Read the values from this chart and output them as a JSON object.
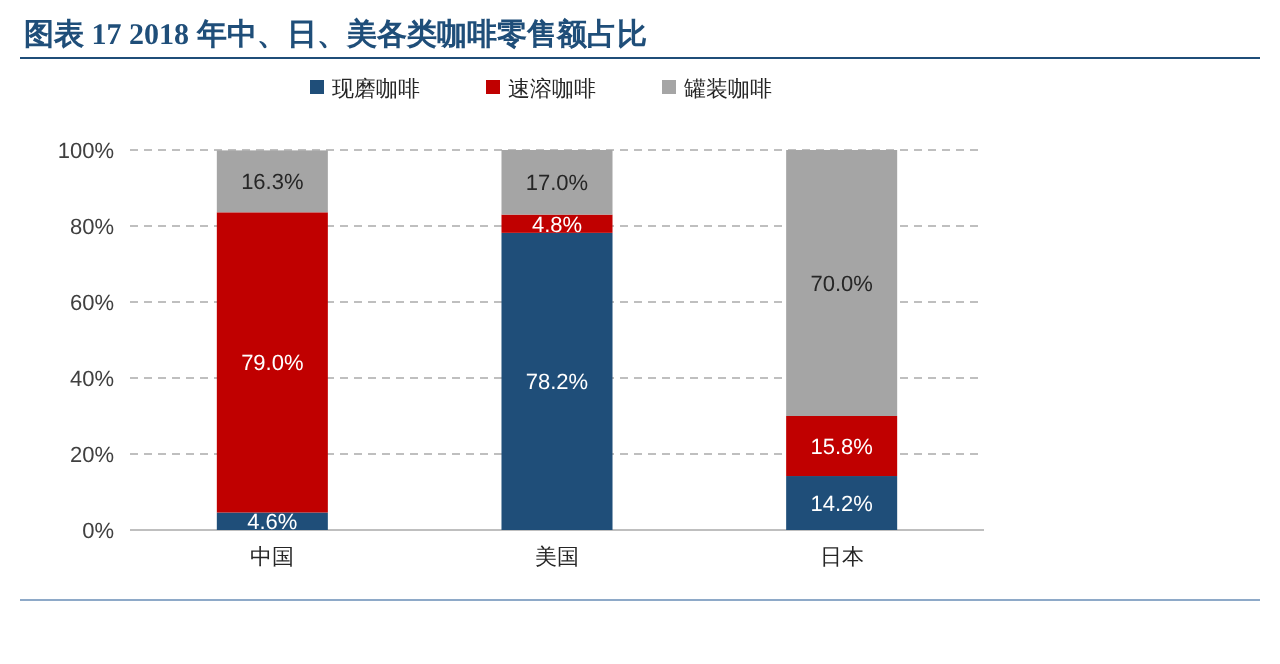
{
  "chart_data": {
    "type": "bar",
    "title": "图表 17   2018 年中、日、美各类咖啡零售额占比",
    "categories": [
      "中国",
      "美国",
      "日本"
    ],
    "stacked": true,
    "series": [
      {
        "name": "现磨咖啡",
        "color": "#1f4e79",
        "values": [
          4.6,
          78.2,
          14.2
        ],
        "value_labels": [
          "4.6%",
          "78.2%",
          "14.2%"
        ]
      },
      {
        "name": "速溶咖啡",
        "color": "#c00000",
        "values": [
          79.0,
          4.8,
          15.8
        ],
        "value_labels": [
          "79.0%",
          "4.8%",
          "15.8%"
        ]
      },
      {
        "name": "罐装咖啡",
        "color": "#a5a5a5",
        "values": [
          16.3,
          17.0,
          70.0
        ],
        "value_labels": [
          "16.3%",
          "17.0%",
          "70.0%"
        ]
      }
    ],
    "ylim": [
      0,
      100
    ],
    "yticks": [
      {
        "value": 0,
        "label": "0%"
      },
      {
        "value": 20,
        "label": "20%"
      },
      {
        "value": 40,
        "label": "40%"
      },
      {
        "value": 60,
        "label": "60%"
      },
      {
        "value": 80,
        "label": "80%"
      },
      {
        "value": 100,
        "label": "100%"
      }
    ],
    "grid": "y",
    "legend": "top"
  }
}
